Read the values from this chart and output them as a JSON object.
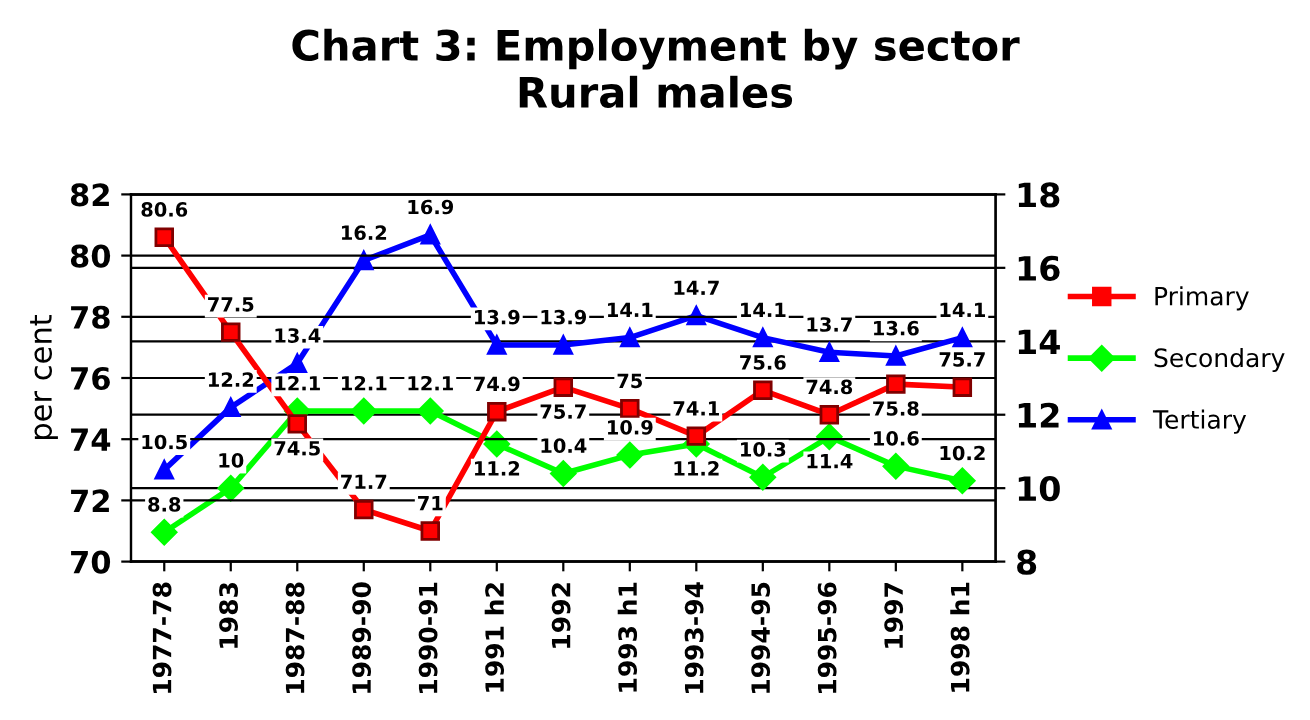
{
  "chart_data": {
    "type": "line",
    "title": "Chart 3: Employment by sector\nRural males",
    "ylabel": "per cent",
    "categories": [
      "1977-78",
      "1983",
      "1987-88",
      "1989-90",
      "1990-91",
      "1991 h2",
      "1992",
      "1993 h1",
      "1993-94",
      "1994-95",
      "1995-96",
      "1997",
      "1998 h1"
    ],
    "series": [
      {
        "name": "Primary",
        "color": "#ff0000",
        "marker": "square",
        "values": [
          80.6,
          77.5,
          74.5,
          71.7,
          71,
          74.9,
          75.7,
          75,
          74.1,
          75.6,
          74.8,
          75.8,
          75.7
        ]
      },
      {
        "name": "Secondary",
        "color": "#00ff00",
        "marker": "diamond",
        "axis": "y2",
        "values": [
          8.8,
          10,
          12.1,
          12.1,
          12.1,
          11.2,
          10.4,
          10.9,
          11.2,
          10.3,
          11.4,
          10.6,
          10.2
        ]
      },
      {
        "name": "Tertiary",
        "color": "#0000ff",
        "marker": "triangle",
        "axis": "y2",
        "values": [
          10.5,
          12.2,
          13.4,
          16.2,
          16.9,
          13.9,
          13.9,
          14.1,
          14.7,
          14.1,
          13.7,
          13.6,
          14.1
        ]
      }
    ],
    "ylim": [
      70,
      82
    ],
    "yticks": [
      70,
      72,
      74,
      76,
      78,
      80,
      82
    ],
    "y2lim": [
      8,
      18
    ],
    "y2ticks": [
      8,
      10,
      12,
      14,
      16,
      18
    ],
    "grid": "y",
    "legend": "right",
    "data_labels": true
  }
}
